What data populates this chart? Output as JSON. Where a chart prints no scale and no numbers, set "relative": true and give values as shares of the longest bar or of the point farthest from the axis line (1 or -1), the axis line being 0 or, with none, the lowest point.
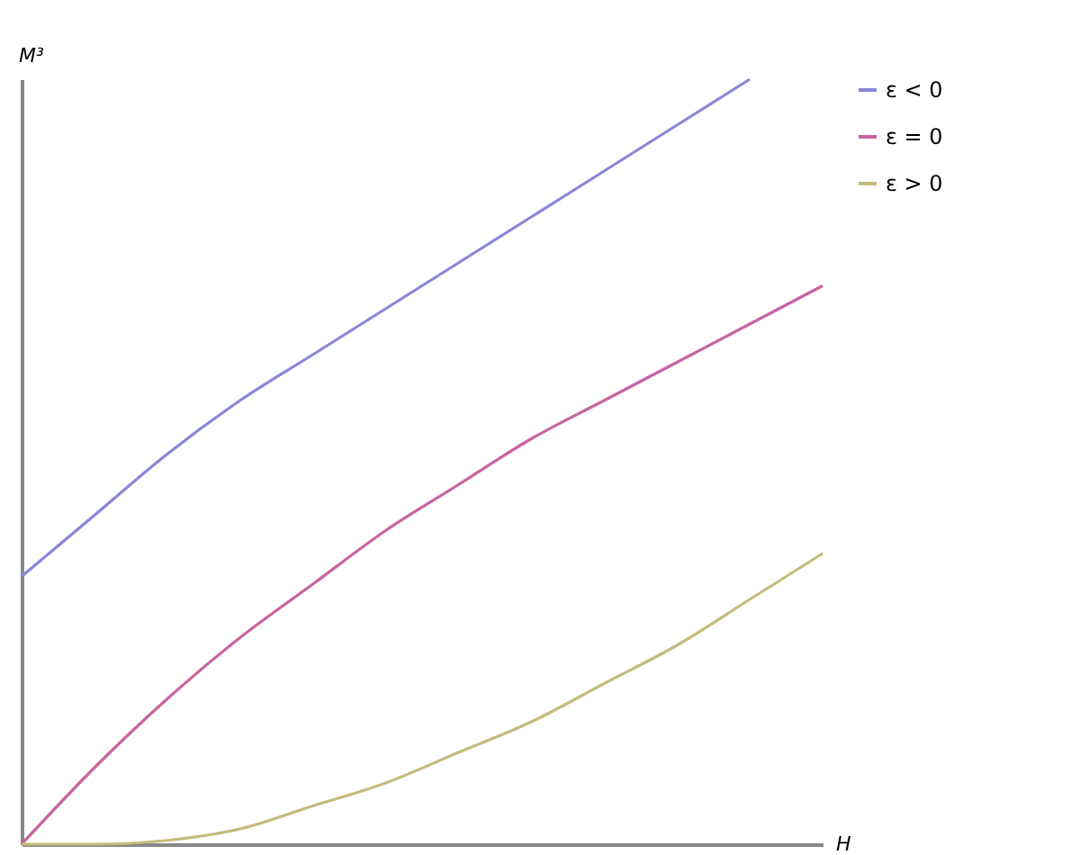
{
  "chart_data": {
    "type": "line",
    "xlabel": "H",
    "ylabel": "M³",
    "relative": true,
    "legend": "right",
    "grid": false,
    "categories": [
      null,
      null,
      null,
      null,
      null,
      null,
      null,
      null,
      null,
      null,
      null,
      null
    ],
    "series": [
      {
        "name": "ε < 0",
        "color": "#8a86d8",
        "values": [
          0.35,
          0.43,
          0.51,
          0.58,
          0.64,
          0.7,
          0.76,
          0.82,
          0.88,
          0.94,
          1.0,
          null
        ]
      },
      {
        "name": "ε = 0",
        "color": "#c8649e",
        "values": [
          0,
          0.1,
          0.19,
          0.27,
          0.34,
          0.41,
          0.47,
          0.53,
          0.58,
          0.63,
          0.68,
          0.73
        ]
      },
      {
        "name": "ε > 0",
        "color": "#c4bc7c",
        "values": [
          0,
          0,
          0.005,
          0.02,
          0.05,
          0.08,
          0.12,
          0.16,
          0.21,
          0.26,
          0.32,
          0.38
        ]
      }
    ]
  }
}
